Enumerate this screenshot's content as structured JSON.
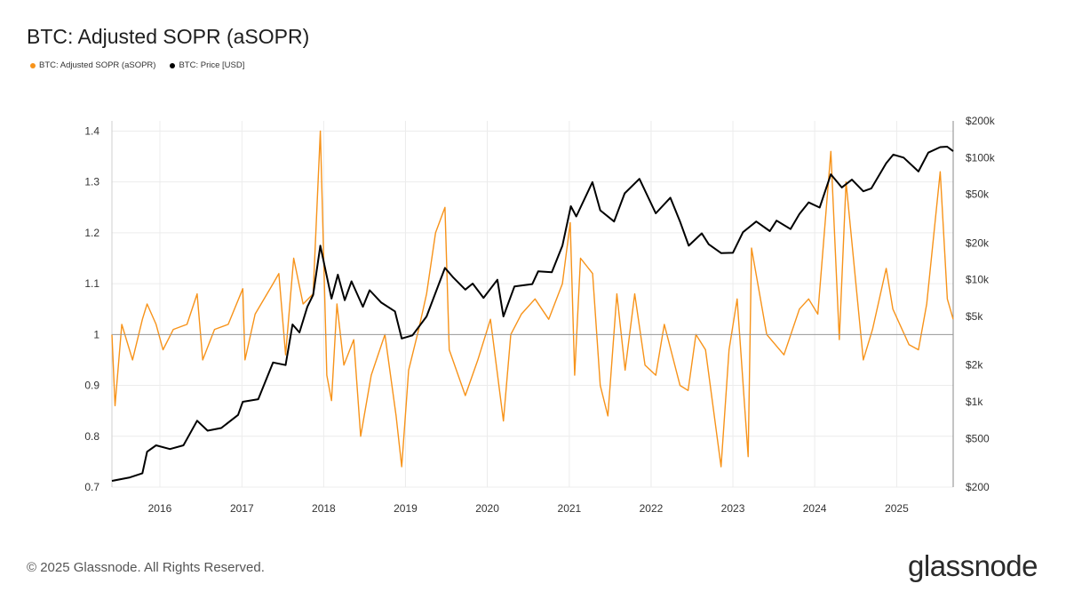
{
  "title": "BTC: Adjusted SOPR (aSOPR)",
  "legend": {
    "sopr_label": "BTC: Adjusted SOPR (aSOPR)",
    "price_label": "BTC: Price [USD]"
  },
  "footer": "© 2025 Glassnode. All Rights Reserved.",
  "logo_text": "glassnode",
  "colors": {
    "sopr": "#f7931a",
    "price": "#000000",
    "grid": "#ececec",
    "baseline": "#999999"
  },
  "chart_data": {
    "type": "line",
    "x_range": [
      "2015-06-01",
      "2025-09-10"
    ],
    "x_ticks": [
      "2016",
      "2017",
      "2018",
      "2019",
      "2020",
      "2021",
      "2022",
      "2023",
      "2024",
      "2025"
    ],
    "y_left": {
      "label": "",
      "range": [
        0.7,
        1.42
      ],
      "ticks": [
        "0.7",
        "0.8",
        "0.9",
        "1",
        "1.1",
        "1.2",
        "1.3",
        "1.4"
      ]
    },
    "y_right": {
      "label": "",
      "scale": "log",
      "range": [
        200,
        200000
      ],
      "ticks": [
        {
          "value": 200,
          "label": "$200"
        },
        {
          "value": 500,
          "label": "$500"
        },
        {
          "value": 1000,
          "label": "$1k"
        },
        {
          "value": 2000,
          "label": "$2k"
        },
        {
          "value": 5000,
          "label": "$5k"
        },
        {
          "value": 10000,
          "label": "$10k"
        },
        {
          "value": 20000,
          "label": "$20k"
        },
        {
          "value": 50000,
          "label": "$50k"
        },
        {
          "value": 100000,
          "label": "$100k"
        },
        {
          "value": 200000,
          "label": "$200k"
        }
      ]
    },
    "grid": true,
    "legend_position": "top-left",
    "series": [
      {
        "name": "BTC: Adjusted SOPR (aSOPR)",
        "axis": "left",
        "points": [
          [
            "2015-06-01",
            1.0
          ],
          [
            "2015-06-15",
            0.86
          ],
          [
            "2015-07-15",
            1.02
          ],
          [
            "2015-09-01",
            0.95
          ],
          [
            "2015-10-15",
            1.03
          ],
          [
            "2015-11-05",
            1.06
          ],
          [
            "2015-12-15",
            1.02
          ],
          [
            "2016-01-15",
            0.97
          ],
          [
            "2016-03-01",
            1.01
          ],
          [
            "2016-05-01",
            1.02
          ],
          [
            "2016-06-15",
            1.08
          ],
          [
            "2016-07-10",
            0.95
          ],
          [
            "2016-09-01",
            1.01
          ],
          [
            "2016-11-01",
            1.02
          ],
          [
            "2017-01-05",
            1.09
          ],
          [
            "2017-01-15",
            0.95
          ],
          [
            "2017-03-01",
            1.04
          ],
          [
            "2017-05-20",
            1.1
          ],
          [
            "2017-06-15",
            1.12
          ],
          [
            "2017-07-15",
            0.96
          ],
          [
            "2017-08-20",
            1.15
          ],
          [
            "2017-10-01",
            1.06
          ],
          [
            "2017-11-15",
            1.08
          ],
          [
            "2017-12-17",
            1.4
          ],
          [
            "2018-01-15",
            0.92
          ],
          [
            "2018-02-05",
            0.87
          ],
          [
            "2018-03-01",
            1.06
          ],
          [
            "2018-04-01",
            0.94
          ],
          [
            "2018-05-15",
            0.99
          ],
          [
            "2018-06-15",
            0.8
          ],
          [
            "2018-08-01",
            0.92
          ],
          [
            "2018-10-01",
            1.0
          ],
          [
            "2018-11-20",
            0.84
          ],
          [
            "2018-12-15",
            0.74
          ],
          [
            "2019-01-15",
            0.93
          ],
          [
            "2019-03-01",
            1.01
          ],
          [
            "2019-04-05",
            1.08
          ],
          [
            "2019-05-15",
            1.2
          ],
          [
            "2019-06-26",
            1.25
          ],
          [
            "2019-07-15",
            0.97
          ],
          [
            "2019-09-25",
            0.88
          ],
          [
            "2019-11-20",
            0.95
          ],
          [
            "2020-01-15",
            1.03
          ],
          [
            "2020-03-13",
            0.83
          ],
          [
            "2020-04-15",
            1.0
          ],
          [
            "2020-06-01",
            1.04
          ],
          [
            "2020-08-01",
            1.07
          ],
          [
            "2020-10-01",
            1.03
          ],
          [
            "2020-12-01",
            1.1
          ],
          [
            "2021-01-05",
            1.22
          ],
          [
            "2021-01-25",
            0.92
          ],
          [
            "2021-02-20",
            1.15
          ],
          [
            "2021-04-15",
            1.12
          ],
          [
            "2021-05-19",
            0.9
          ],
          [
            "2021-06-22",
            0.84
          ],
          [
            "2021-08-01",
            1.08
          ],
          [
            "2021-09-07",
            0.93
          ],
          [
            "2021-10-20",
            1.08
          ],
          [
            "2021-12-05",
            0.94
          ],
          [
            "2022-01-22",
            0.92
          ],
          [
            "2022-03-01",
            1.02
          ],
          [
            "2022-05-10",
            0.9
          ],
          [
            "2022-06-15",
            0.89
          ],
          [
            "2022-07-20",
            1.0
          ],
          [
            "2022-09-01",
            0.97
          ],
          [
            "2022-11-09",
            0.74
          ],
          [
            "2022-12-15",
            0.97
          ],
          [
            "2023-01-20",
            1.07
          ],
          [
            "2023-03-10",
            0.76
          ],
          [
            "2023-03-25",
            1.17
          ],
          [
            "2023-06-01",
            1.0
          ],
          [
            "2023-08-17",
            0.96
          ],
          [
            "2023-10-25",
            1.05
          ],
          [
            "2023-12-05",
            1.07
          ],
          [
            "2024-01-15",
            1.04
          ],
          [
            "2024-03-13",
            1.36
          ],
          [
            "2024-04-20",
            0.99
          ],
          [
            "2024-05-20",
            1.3
          ],
          [
            "2024-08-05",
            0.95
          ],
          [
            "2024-09-15",
            1.01
          ],
          [
            "2024-11-15",
            1.13
          ],
          [
            "2024-12-15",
            1.05
          ],
          [
            "2025-02-25",
            0.98
          ],
          [
            "2025-04-08",
            0.97
          ],
          [
            "2025-05-15",
            1.06
          ],
          [
            "2025-07-14",
            1.32
          ],
          [
            "2025-08-15",
            1.07
          ],
          [
            "2025-09-10",
            1.03
          ]
        ]
      },
      {
        "name": "BTC: Price [USD]",
        "axis": "right",
        "points": [
          [
            "2015-06-01",
            225
          ],
          [
            "2015-08-20",
            240
          ],
          [
            "2015-10-15",
            260
          ],
          [
            "2015-11-05",
            390
          ],
          [
            "2015-12-15",
            440
          ],
          [
            "2016-02-15",
            410
          ],
          [
            "2016-04-15",
            440
          ],
          [
            "2016-06-15",
            700
          ],
          [
            "2016-08-01",
            580
          ],
          [
            "2016-10-01",
            610
          ],
          [
            "2016-12-15",
            780
          ],
          [
            "2017-01-05",
            1000
          ],
          [
            "2017-03-15",
            1050
          ],
          [
            "2017-05-20",
            2100
          ],
          [
            "2017-07-15",
            2000
          ],
          [
            "2017-08-15",
            4300
          ],
          [
            "2017-09-15",
            3700
          ],
          [
            "2017-10-20",
            6000
          ],
          [
            "2017-11-15",
            7500
          ],
          [
            "2017-12-17",
            19000
          ],
          [
            "2018-02-05",
            7000
          ],
          [
            "2018-03-05",
            11000
          ],
          [
            "2018-04-05",
            6800
          ],
          [
            "2018-05-05",
            9700
          ],
          [
            "2018-06-25",
            6000
          ],
          [
            "2018-07-25",
            8200
          ],
          [
            "2018-09-15",
            6500
          ],
          [
            "2018-11-15",
            5500
          ],
          [
            "2018-12-15",
            3300
          ],
          [
            "2019-02-01",
            3500
          ],
          [
            "2019-04-05",
            5000
          ],
          [
            "2019-06-26",
            12500
          ],
          [
            "2019-08-01",
            10500
          ],
          [
            "2019-09-25",
            8300
          ],
          [
            "2019-10-28",
            9300
          ],
          [
            "2019-12-15",
            7100
          ],
          [
            "2020-02-15",
            10000
          ],
          [
            "2020-03-13",
            5000
          ],
          [
            "2020-05-01",
            8800
          ],
          [
            "2020-07-20",
            9200
          ],
          [
            "2020-08-15",
            11700
          ],
          [
            "2020-10-15",
            11500
          ],
          [
            "2020-12-01",
            19000
          ],
          [
            "2021-01-08",
            40000
          ],
          [
            "2021-02-01",
            33000
          ],
          [
            "2021-04-14",
            63000
          ],
          [
            "2021-05-19",
            37000
          ],
          [
            "2021-07-20",
            30000
          ],
          [
            "2021-09-05",
            51000
          ],
          [
            "2021-11-10",
            67000
          ],
          [
            "2022-01-22",
            35000
          ],
          [
            "2022-03-28",
            47000
          ],
          [
            "2022-05-10",
            30000
          ],
          [
            "2022-06-18",
            19000
          ],
          [
            "2022-08-15",
            24000
          ],
          [
            "2022-09-15",
            19500
          ],
          [
            "2022-11-10",
            16500
          ],
          [
            "2023-01-01",
            16600
          ],
          [
            "2023-02-15",
            24500
          ],
          [
            "2023-04-15",
            30000
          ],
          [
            "2023-06-15",
            25000
          ],
          [
            "2023-07-15",
            30500
          ],
          [
            "2023-09-15",
            26000
          ],
          [
            "2023-10-25",
            34500
          ],
          [
            "2023-12-05",
            43000
          ],
          [
            "2024-01-23",
            39000
          ],
          [
            "2024-03-13",
            73000
          ],
          [
            "2024-05-01",
            57000
          ],
          [
            "2024-06-15",
            66000
          ],
          [
            "2024-08-05",
            53000
          ],
          [
            "2024-09-10",
            56000
          ],
          [
            "2024-11-15",
            90000
          ],
          [
            "2024-12-17",
            106000
          ],
          [
            "2025-02-01",
            100000
          ],
          [
            "2025-04-08",
            77000
          ],
          [
            "2025-05-22",
            110000
          ],
          [
            "2025-07-14",
            122000
          ],
          [
            "2025-08-14",
            123000
          ],
          [
            "2025-09-10",
            113000
          ]
        ]
      }
    ]
  }
}
